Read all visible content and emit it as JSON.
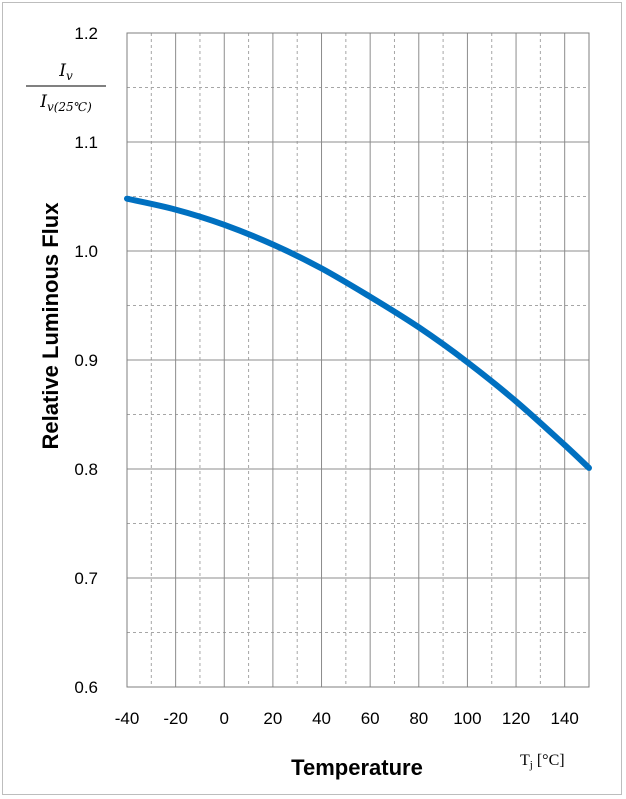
{
  "chart_data": {
    "type": "line",
    "xlabel": "Temperature",
    "xunit": "Tj [°C]",
    "ylabel": "Relative Luminous Flux",
    "ylabel_fraction": {
      "numerator": "Iv",
      "denominator": "Iv(25°C)"
    },
    "xlim": [
      -40,
      150
    ],
    "ylim": [
      0.6,
      1.2
    ],
    "x_ticks": [
      -40,
      -20,
      0,
      20,
      40,
      60,
      80,
      100,
      120,
      140
    ],
    "y_ticks": [
      0.6,
      0.7,
      0.8,
      0.9,
      1.0,
      1.1,
      1.2
    ],
    "grid": true,
    "series": [
      {
        "color": "#0070c0",
        "x": [
          -40,
          -20,
          0,
          20,
          40,
          60,
          80,
          100,
          120,
          140,
          150
        ],
        "y": [
          1.048,
          1.038,
          1.024,
          1.006,
          0.984,
          0.958,
          0.93,
          0.898,
          0.862,
          0.822,
          0.801
        ]
      }
    ]
  }
}
